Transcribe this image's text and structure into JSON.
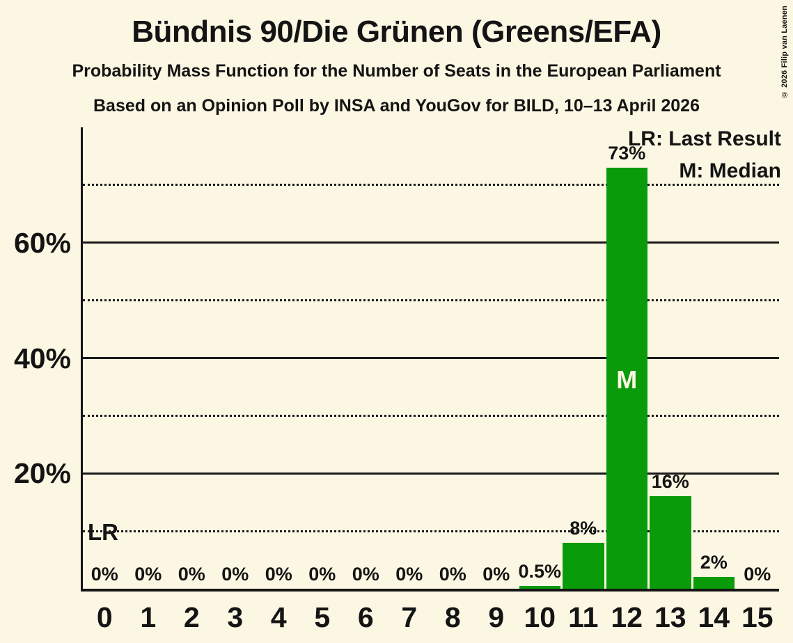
{
  "title": "Bündnis 90/Die Grünen (Greens/EFA)",
  "subtitle": "Probability Mass Function for the Number of Seats in the European Parliament",
  "poll_info": "Based on an Opinion Poll by INSA and YouGov for BILD, 10–13 April 2026",
  "copyright": "© 2026 Filip van Laenen",
  "legend": {
    "last_result": "LR: Last Result",
    "median": "M: Median"
  },
  "colors": {
    "background": "#FCF7E3",
    "bar": "#0A9B0A",
    "text": "#141414",
    "grid": "#1A1A1A",
    "median_text": "#FCF7E3"
  },
  "chart_data": {
    "type": "bar",
    "title": "Bündnis 90/Die Grünen (Greens/EFA)",
    "subtitle": "Probability Mass Function for the Number of Seats in the European Parliament",
    "source": "Based on an Opinion Poll by INSA and YouGov for BILD, 10–13 April 2026",
    "categories": [
      "0",
      "1",
      "2",
      "3",
      "4",
      "5",
      "6",
      "7",
      "8",
      "9",
      "10",
      "11",
      "12",
      "13",
      "14",
      "15"
    ],
    "values": [
      0,
      0,
      0,
      0,
      0,
      0,
      0,
      0,
      0,
      0,
      0.5,
      8,
      73,
      16,
      2,
      0
    ],
    "bar_labels": [
      "0%",
      "0%",
      "0%",
      "0%",
      "0%",
      "0%",
      "0%",
      "0%",
      "0%",
      "0%",
      "0.5%",
      "8%",
      "73%",
      "16%",
      "2%",
      "0%"
    ],
    "ylim": [
      0,
      80
    ],
    "major_gridlines": [
      {
        "value": 20,
        "label": "20%"
      },
      {
        "value": 40,
        "label": "40%"
      },
      {
        "value": 60,
        "label": "60%"
      }
    ],
    "minor_gridlines": [
      10,
      30,
      50,
      70
    ],
    "median_category": "12",
    "median_marker": "M",
    "last_result_marker": "LR",
    "legend": [
      "LR: Last Result",
      "M: Median"
    ],
    "legend_position": "top-right",
    "grid": true
  }
}
